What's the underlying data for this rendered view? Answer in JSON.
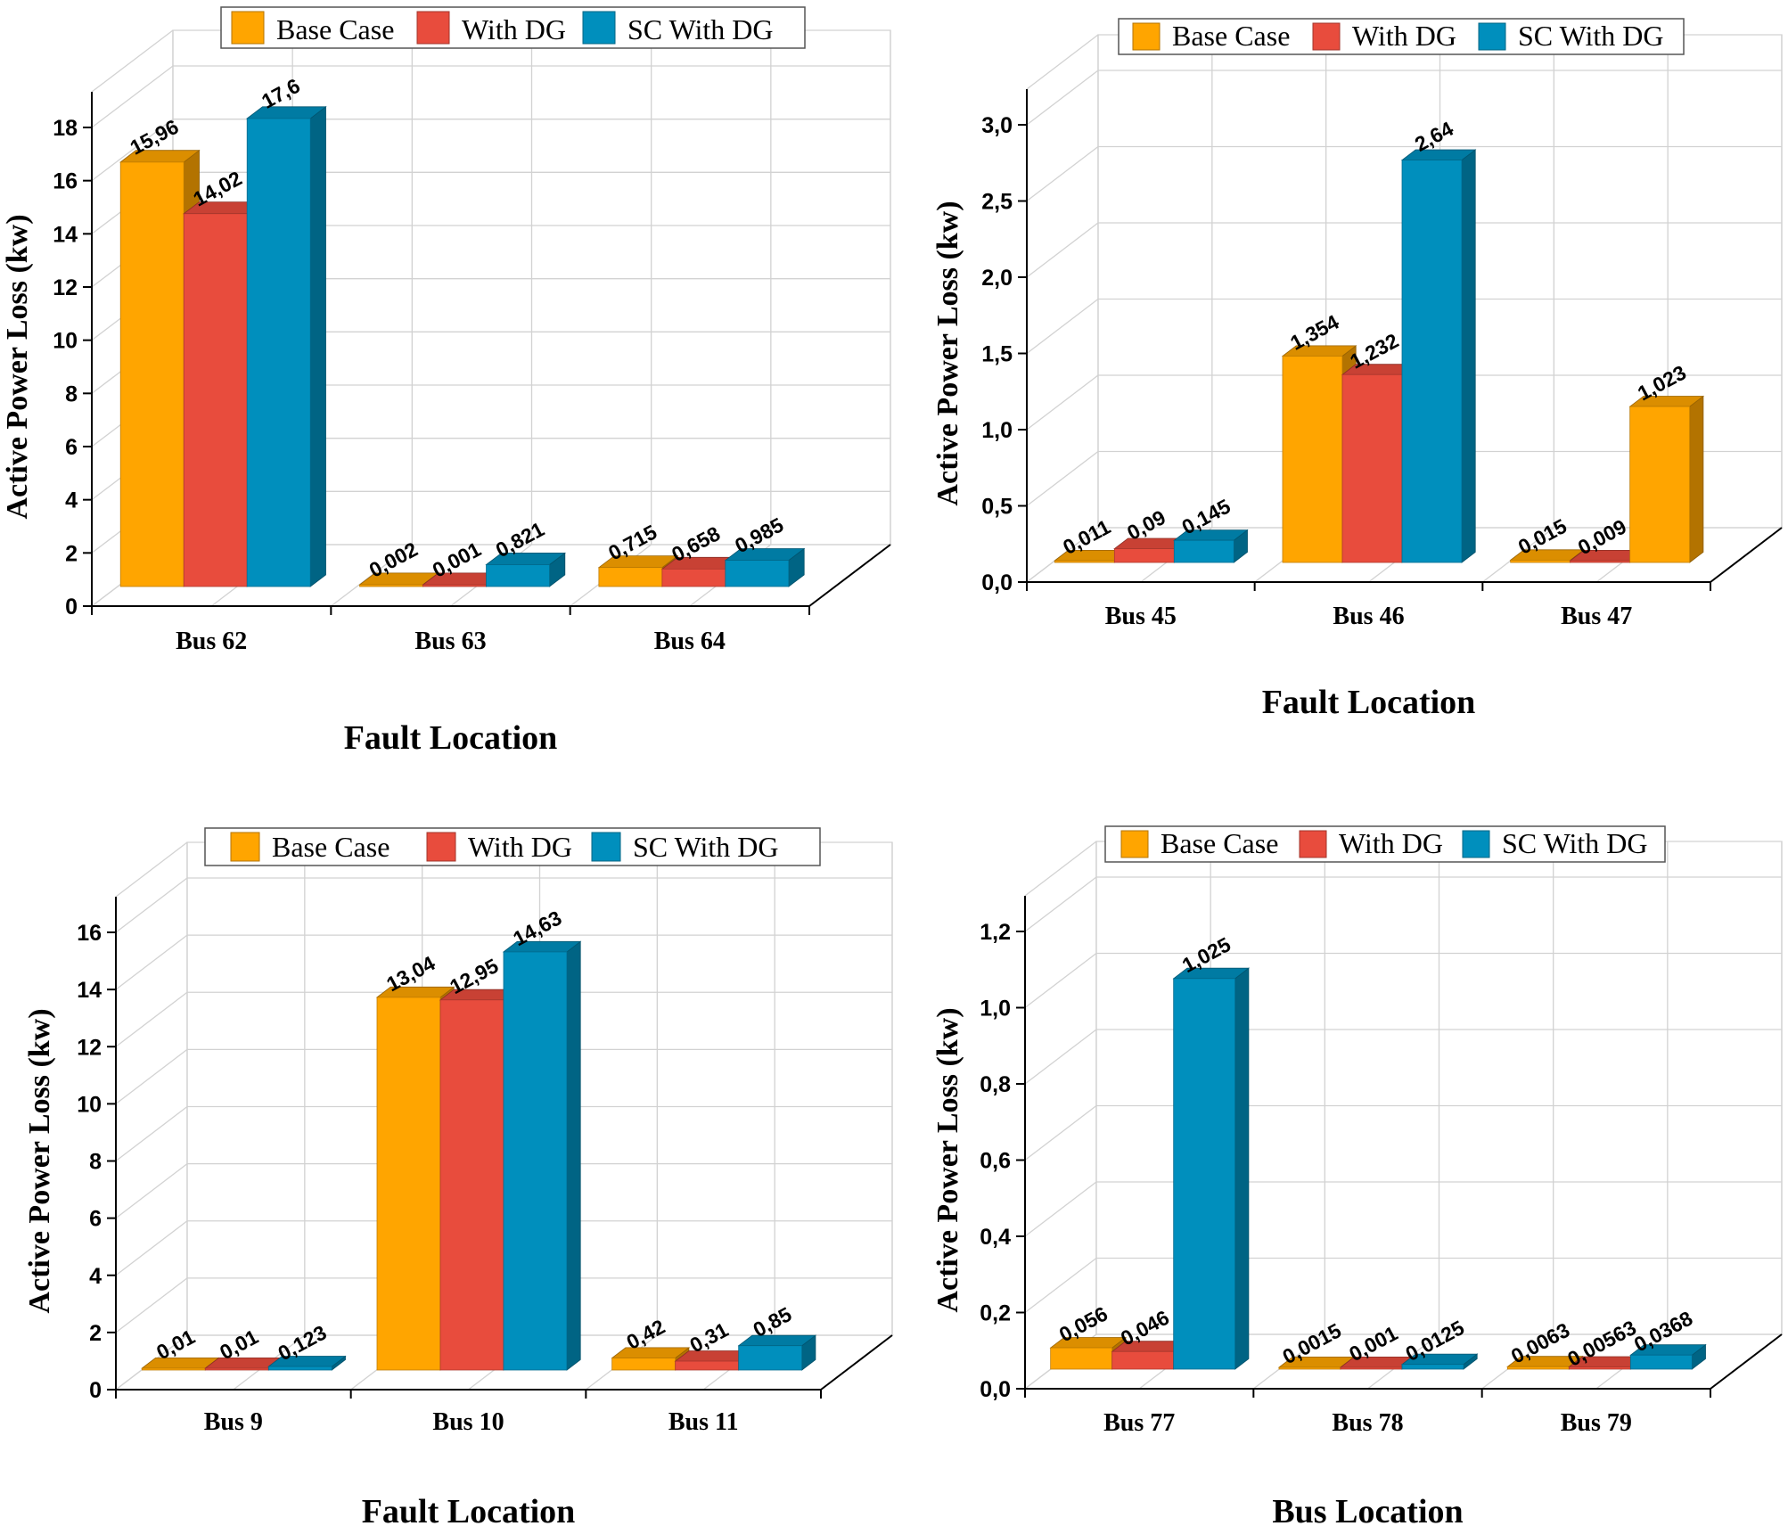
{
  "colors": {
    "base_case": "#FFA500",
    "with_dg": "#E84C3D",
    "sc_with_dg": "#008FBD"
  },
  "chart_data": [
    {
      "type": "bar",
      "style": "3d-clustered",
      "ylabel": "Active Power Loss (kw)",
      "xlabel": "Fault Location",
      "categories": [
        "Bus 62",
        "Bus 63",
        "Bus 64"
      ],
      "legend": [
        "Base Case",
        "With DG",
        "SC With DG"
      ],
      "yticks": [
        "0",
        "2",
        "4",
        "6",
        "8",
        "10",
        "12",
        "14",
        "16",
        "18"
      ],
      "ylim": [
        0,
        18
      ],
      "series": [
        {
          "name": "Base Case",
          "values": [
            15.96,
            0.002,
            0.715
          ],
          "labels": [
            "15,96",
            "0,002",
            "0,715"
          ]
        },
        {
          "name": "With DG",
          "values": [
            14.02,
            0.001,
            0.658
          ],
          "labels": [
            "14,02",
            "0,001",
            "0,658"
          ]
        },
        {
          "name": "SC With DG",
          "values": [
            17.6,
            0.821,
            0.985
          ],
          "labels": [
            "17,6",
            "0,821",
            "0,985"
          ]
        }
      ]
    },
    {
      "type": "bar",
      "style": "3d-clustered",
      "ylabel": "Active Power Loss (kw)",
      "xlabel": "Fault Location",
      "categories": [
        "Bus 45",
        "Bus 46",
        "Bus 47"
      ],
      "legend": [
        "Base Case",
        "With DG",
        "SC With DG"
      ],
      "yticks": [
        "0,0",
        "0,5",
        "1,0",
        "1,5",
        "2,0",
        "2,5",
        "3,0"
      ],
      "ylim": [
        0,
        3.0
      ],
      "series": [
        {
          "name": "Base Case",
          "values": [
            0.011,
            1.354,
            0.015
          ],
          "labels": [
            "0,011",
            "1,354",
            "0,015"
          ]
        },
        {
          "name": "With DG",
          "values": [
            0.09,
            1.232,
            0.009
          ],
          "labels": [
            "0,09",
            "1,232",
            "0,009"
          ]
        },
        {
          "name": "SC With DG",
          "values": [
            0.145,
            2.64,
            1.023
          ],
          "labels": [
            "0,145",
            "2,64",
            "1,023"
          ],
          "colors": [
            "#008FBD",
            "#008FBD",
            "#FFA500"
          ]
        }
      ]
    },
    {
      "type": "bar",
      "style": "3d-clustered",
      "ylabel": "Active Power Loss (kw)",
      "xlabel": "Fault Location",
      "categories": [
        "Bus 9",
        "Bus 10",
        "Bus 11"
      ],
      "legend": [
        "Base Case",
        "With DG",
        "SC With DG"
      ],
      "yticks": [
        "0",
        "2",
        "4",
        "6",
        "8",
        "10",
        "12",
        "14",
        "16"
      ],
      "ylim": [
        0,
        16
      ],
      "series": [
        {
          "name": "Base Case",
          "values": [
            0.01,
            13.04,
            0.42
          ],
          "labels": [
            "0,01",
            "13,04",
            "0,42"
          ]
        },
        {
          "name": "With DG",
          "values": [
            0.01,
            12.95,
            0.31
          ],
          "labels": [
            "0,01",
            "12,95",
            "0,31"
          ]
        },
        {
          "name": "SC With DG",
          "values": [
            0.123,
            14.63,
            0.85
          ],
          "labels": [
            "0,123",
            "14,63",
            "0,85"
          ]
        }
      ]
    },
    {
      "type": "bar",
      "style": "3d-clustered",
      "ylabel": "Active Power Loss (kw)",
      "xlabel": "Bus Location",
      "categories": [
        "Bus 77",
        "Bus 78",
        "Bus 79"
      ],
      "legend": [
        "Base Case",
        "With DG",
        "SC With DG"
      ],
      "yticks": [
        "0,0",
        "0,2",
        "0,4",
        "0,6",
        "0,8",
        "1,0",
        "1,2"
      ],
      "ylim": [
        0,
        1.2
      ],
      "series": [
        {
          "name": "Base Case",
          "values": [
            0.056,
            0.0015,
            0.0063
          ],
          "labels": [
            "0,056",
            "0,0015",
            "0,0063"
          ]
        },
        {
          "name": "With DG",
          "values": [
            0.046,
            0.001,
            0.00563
          ],
          "labels": [
            "0,046",
            "0,001",
            "0,00563"
          ]
        },
        {
          "name": "SC With DG",
          "values": [
            1.025,
            0.0125,
            0.0368
          ],
          "labels": [
            "1,025",
            "0,0125",
            "0,0368"
          ]
        }
      ]
    }
  ]
}
